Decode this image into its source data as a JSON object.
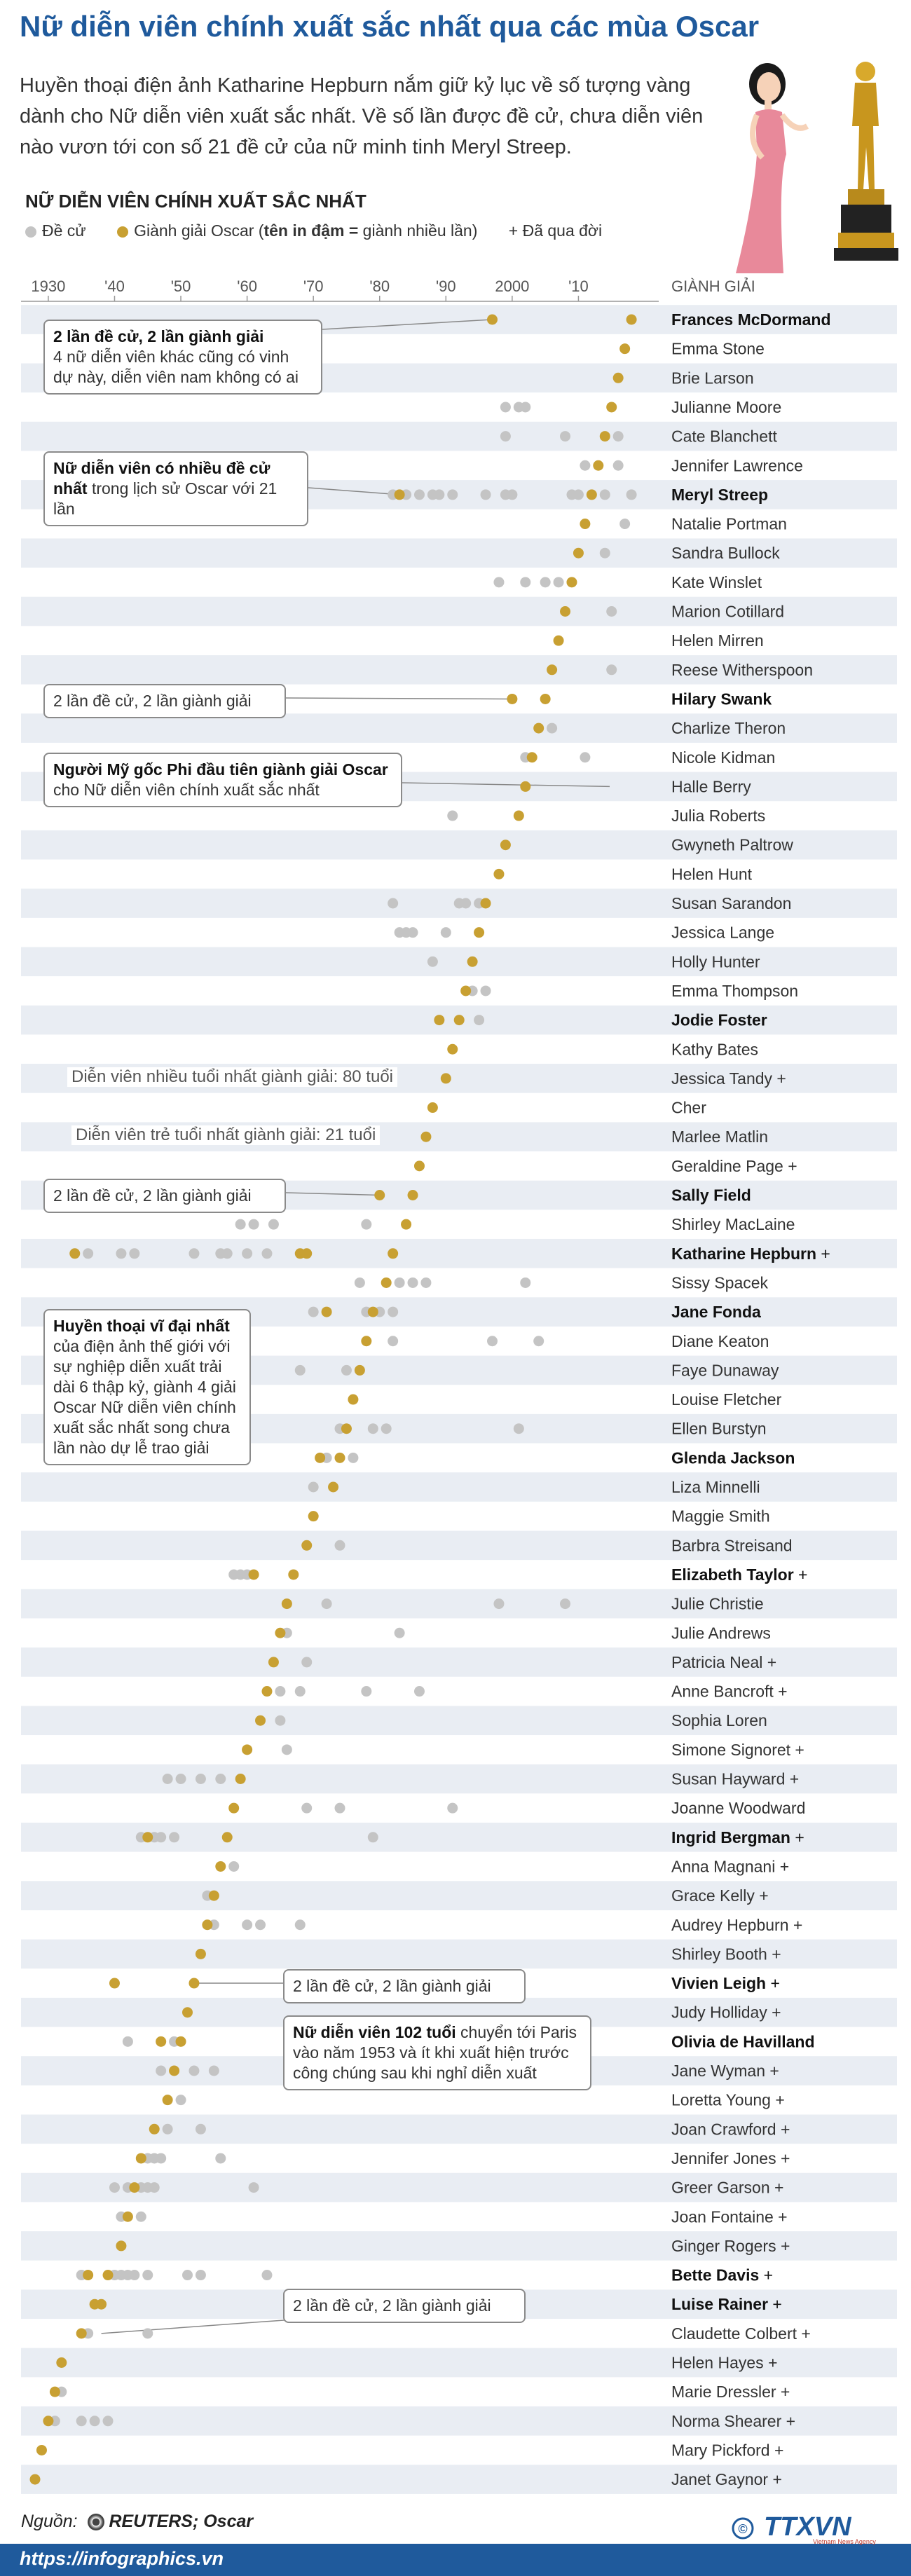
{
  "title": "Nữ diễn viên chính xuất sắc nhất qua các mùa Oscar",
  "intro": "Huyền thoại điện ảnh Katharine Hepburn nắm giữ kỷ lục về số tượng vàng dành cho Nữ diễn viên xuất sắc nhất. Về số lần được đề cử, chưa diễn viên nào vươn tới con số 21 đề cử của nữ minh tinh Meryl Streep.",
  "section_title": "NỮ DIỄN VIÊN CHÍNH XUẤT SẮC NHẤT",
  "legend": {
    "nominated": "Đề cử",
    "won_prefix": "Giành giải Oscar (",
    "won_bold": "tên in đậm =",
    "won_suffix": " giành nhiều lần)",
    "deceased": "+ Đã qua đời"
  },
  "colors": {
    "title": "#1f5a9c",
    "gold": "#c8a032",
    "gray": "#c4c4c4",
    "stripe": "#e9edf3"
  },
  "chart_data": {
    "type": "scatter",
    "x_axis_label": "",
    "y_axis_label": "GIÀNH GIẢI",
    "xlim": [
      1928,
      2020
    ],
    "x_ticks": [
      {
        "year": 1930,
        "label": "1930"
      },
      {
        "year": 1940,
        "label": "'40"
      },
      {
        "year": 1950,
        "label": "'50"
      },
      {
        "year": 1960,
        "label": "'60"
      },
      {
        "year": 1970,
        "label": "'70"
      },
      {
        "year": 1980,
        "label": "'80"
      },
      {
        "year": 1990,
        "label": "'90"
      },
      {
        "year": 2000,
        "label": "2000"
      },
      {
        "year": 2010,
        "label": "'10"
      }
    ],
    "actresses": [
      {
        "name": "Frances McDormand",
        "multi": true,
        "deceased": false,
        "wins": [
          1997,
          2018
        ],
        "noms": []
      },
      {
        "name": "Emma Stone",
        "multi": false,
        "deceased": false,
        "wins": [
          2017
        ],
        "noms": []
      },
      {
        "name": "Brie Larson",
        "multi": false,
        "deceased": false,
        "wins": [
          2016
        ],
        "noms": []
      },
      {
        "name": "Julianne Moore",
        "multi": false,
        "deceased": false,
        "wins": [
          2015
        ],
        "noms": [
          1999,
          2001,
          2002
        ]
      },
      {
        "name": "Cate Blanchett",
        "multi": false,
        "deceased": false,
        "wins": [
          2014
        ],
        "noms": [
          1999,
          2008,
          2016
        ]
      },
      {
        "name": "Jennifer Lawrence",
        "multi": false,
        "deceased": false,
        "wins": [
          2013
        ],
        "noms": [
          2011,
          2016
        ]
      },
      {
        "name": "Meryl Streep",
        "multi": true,
        "deceased": false,
        "wins": [
          1983,
          2012
        ],
        "noms": [
          1982,
          1984,
          1986,
          1988,
          1989,
          1991,
          1996,
          1999,
          2000,
          2009,
          2010,
          2014,
          2018
        ]
      },
      {
        "name": "Natalie Portman",
        "multi": false,
        "deceased": false,
        "wins": [
          2011
        ],
        "noms": [
          2017
        ]
      },
      {
        "name": "Sandra Bullock",
        "multi": false,
        "deceased": false,
        "wins": [
          2010
        ],
        "noms": [
          2014
        ]
      },
      {
        "name": "Kate Winslet",
        "multi": false,
        "deceased": false,
        "wins": [
          2009
        ],
        "noms": [
          1998,
          2002,
          2005,
          2007
        ]
      },
      {
        "name": "Marion Cotillard",
        "multi": false,
        "deceased": false,
        "wins": [
          2008
        ],
        "noms": [
          2015
        ]
      },
      {
        "name": "Helen Mirren",
        "multi": false,
        "deceased": false,
        "wins": [
          2007
        ],
        "noms": []
      },
      {
        "name": "Reese Witherspoon",
        "multi": false,
        "deceased": false,
        "wins": [
          2006
        ],
        "noms": [
          2015
        ]
      },
      {
        "name": "Hilary Swank",
        "multi": true,
        "deceased": false,
        "wins": [
          2000,
          2005
        ],
        "noms": []
      },
      {
        "name": "Charlize Theron",
        "multi": false,
        "deceased": false,
        "wins": [
          2004
        ],
        "noms": [
          2006
        ]
      },
      {
        "name": "Nicole Kidman",
        "multi": false,
        "deceased": false,
        "wins": [
          2003
        ],
        "noms": [
          2002,
          2011
        ]
      },
      {
        "name": "Halle Berry",
        "multi": false,
        "deceased": false,
        "wins": [
          2002
        ],
        "noms": []
      },
      {
        "name": "Julia Roberts",
        "multi": false,
        "deceased": false,
        "wins": [
          2001
        ],
        "noms": [
          1991
        ]
      },
      {
        "name": "Gwyneth Paltrow",
        "multi": false,
        "deceased": false,
        "wins": [
          1999
        ],
        "noms": []
      },
      {
        "name": "Helen Hunt",
        "multi": false,
        "deceased": false,
        "wins": [
          1998
        ],
        "noms": []
      },
      {
        "name": "Susan Sarandon",
        "multi": false,
        "deceased": false,
        "wins": [
          1996
        ],
        "noms": [
          1982,
          1992,
          1993,
          1995
        ]
      },
      {
        "name": "Jessica Lange",
        "multi": false,
        "deceased": false,
        "wins": [
          1995
        ],
        "noms": [
          1983,
          1984,
          1985,
          1990
        ]
      },
      {
        "name": "Holly Hunter",
        "multi": false,
        "deceased": false,
        "wins": [
          1994
        ],
        "noms": [
          1988
        ]
      },
      {
        "name": "Emma Thompson",
        "multi": false,
        "deceased": false,
        "wins": [
          1993
        ],
        "noms": [
          1994,
          1996
        ]
      },
      {
        "name": "Jodie Foster",
        "multi": true,
        "deceased": false,
        "wins": [
          1989,
          1992
        ],
        "noms": [
          1995
        ]
      },
      {
        "name": "Kathy Bates",
        "multi": false,
        "deceased": false,
        "wins": [
          1991
        ],
        "noms": []
      },
      {
        "name": "Jessica Tandy",
        "multi": false,
        "deceased": true,
        "wins": [
          1990
        ],
        "noms": []
      },
      {
        "name": "Cher",
        "multi": false,
        "deceased": false,
        "wins": [
          1988
        ],
        "noms": []
      },
      {
        "name": "Marlee Matlin",
        "multi": false,
        "deceased": false,
        "wins": [
          1987
        ],
        "noms": []
      },
      {
        "name": "Geraldine Page",
        "multi": false,
        "deceased": true,
        "wins": [
          1986
        ],
        "noms": []
      },
      {
        "name": "Sally Field",
        "multi": true,
        "deceased": false,
        "wins": [
          1980,
          1985
        ],
        "noms": []
      },
      {
        "name": "Shirley MacLaine",
        "multi": false,
        "deceased": false,
        "wins": [
          1984
        ],
        "noms": [
          1959,
          1961,
          1964,
          1978
        ]
      },
      {
        "name": "Katharine Hepburn",
        "multi": true,
        "deceased": true,
        "wins": [
          1934,
          1968,
          1969,
          1982
        ],
        "noms": [
          1936,
          1941,
          1943,
          1952,
          1956,
          1957,
          1960,
          1963
        ]
      },
      {
        "name": "Sissy Spacek",
        "multi": false,
        "deceased": false,
        "wins": [
          1981
        ],
        "noms": [
          1977,
          1983,
          1985,
          1987,
          2002
        ]
      },
      {
        "name": "Jane Fonda",
        "multi": true,
        "deceased": false,
        "wins": [
          1972,
          1979
        ],
        "noms": [
          1970,
          1978,
          1980,
          1982
        ]
      },
      {
        "name": "Diane Keaton",
        "multi": false,
        "deceased": false,
        "wins": [
          1978
        ],
        "noms": [
          1982,
          1997,
          2004
        ]
      },
      {
        "name": "Faye Dunaway",
        "multi": false,
        "deceased": false,
        "wins": [
          1977
        ],
        "noms": [
          1968,
          1975
        ]
      },
      {
        "name": "Louise Fletcher",
        "multi": false,
        "deceased": false,
        "wins": [
          1976
        ],
        "noms": []
      },
      {
        "name": "Ellen Burstyn",
        "multi": false,
        "deceased": false,
        "wins": [
          1975
        ],
        "noms": [
          1974,
          1979,
          1981,
          2001
        ]
      },
      {
        "name": "Glenda Jackson",
        "multi": true,
        "deceased": false,
        "wins": [
          1971,
          1974
        ],
        "noms": [
          1972,
          1976
        ]
      },
      {
        "name": "Liza Minnelli",
        "multi": false,
        "deceased": false,
        "wins": [
          1973
        ],
        "noms": [
          1970
        ]
      },
      {
        "name": "Maggie Smith",
        "multi": false,
        "deceased": false,
        "wins": [
          1970
        ],
        "noms": []
      },
      {
        "name": "Barbra Streisand",
        "multi": false,
        "deceased": false,
        "wins": [
          1969
        ],
        "noms": [
          1974
        ]
      },
      {
        "name": "Elizabeth Taylor",
        "multi": true,
        "deceased": true,
        "wins": [
          1961,
          1967
        ],
        "noms": [
          1958,
          1959,
          1960
        ]
      },
      {
        "name": "Julie Christie",
        "multi": false,
        "deceased": false,
        "wins": [
          1966
        ],
        "noms": [
          1972,
          1998,
          2008
        ]
      },
      {
        "name": "Julie Andrews",
        "multi": false,
        "deceased": false,
        "wins": [
          1965
        ],
        "noms": [
          1966,
          1983
        ]
      },
      {
        "name": "Patricia Neal",
        "multi": false,
        "deceased": true,
        "wins": [
          1964
        ],
        "noms": [
          1969
        ]
      },
      {
        "name": "Anne Bancroft",
        "multi": false,
        "deceased": true,
        "wins": [
          1963
        ],
        "noms": [
          1965,
          1968,
          1978,
          1986
        ]
      },
      {
        "name": "Sophia Loren",
        "multi": false,
        "deceased": false,
        "wins": [
          1962
        ],
        "noms": [
          1965
        ]
      },
      {
        "name": "Simone Signoret",
        "multi": false,
        "deceased": true,
        "wins": [
          1960
        ],
        "noms": [
          1966
        ]
      },
      {
        "name": "Susan Hayward",
        "multi": false,
        "deceased": true,
        "wins": [
          1959
        ],
        "noms": [
          1948,
          1950,
          1953,
          1956
        ]
      },
      {
        "name": "Joanne Woodward",
        "multi": false,
        "deceased": false,
        "wins": [
          1958
        ],
        "noms": [
          1969,
          1974,
          1991
        ]
      },
      {
        "name": "Ingrid Bergman",
        "multi": true,
        "deceased": true,
        "wins": [
          1945,
          1957
        ],
        "noms": [
          1944,
          1946,
          1947,
          1949,
          1979
        ]
      },
      {
        "name": "Anna Magnani",
        "multi": false,
        "deceased": true,
        "wins": [
          1956
        ],
        "noms": [
          1958
        ]
      },
      {
        "name": "Grace Kelly",
        "multi": false,
        "deceased": true,
        "wins": [
          1955
        ],
        "noms": [
          1954
        ]
      },
      {
        "name": "Audrey Hepburn",
        "multi": false,
        "deceased": true,
        "wins": [
          1954
        ],
        "noms": [
          1955,
          1960,
          1962,
          1968
        ]
      },
      {
        "name": "Shirley Booth",
        "multi": false,
        "deceased": true,
        "wins": [
          1953
        ],
        "noms": []
      },
      {
        "name": "Vivien Leigh",
        "multi": true,
        "deceased": true,
        "wins": [
          1940,
          1952
        ],
        "noms": []
      },
      {
        "name": "Judy Holliday",
        "multi": false,
        "deceased": true,
        "wins": [
          1951
        ],
        "noms": []
      },
      {
        "name": "Olivia de Havilland",
        "multi": true,
        "deceased": false,
        "wins": [
          1947,
          1950
        ],
        "noms": [
          1942,
          1949
        ]
      },
      {
        "name": "Jane Wyman",
        "multi": false,
        "deceased": true,
        "wins": [
          1949
        ],
        "noms": [
          1947,
          1952,
          1955
        ]
      },
      {
        "name": "Loretta Young",
        "multi": false,
        "deceased": true,
        "wins": [
          1948
        ],
        "noms": [
          1950
        ]
      },
      {
        "name": "Joan Crawford",
        "multi": false,
        "deceased": true,
        "wins": [
          1946
        ],
        "noms": [
          1948,
          1953
        ]
      },
      {
        "name": "Jennifer Jones",
        "multi": false,
        "deceased": true,
        "wins": [
          1944
        ],
        "noms": [
          1945,
          1946,
          1947,
          1956
        ]
      },
      {
        "name": "Greer Garson",
        "multi": false,
        "deceased": true,
        "wins": [
          1943
        ],
        "noms": [
          1940,
          1942,
          1944,
          1945,
          1946,
          1961
        ]
      },
      {
        "name": "Joan Fontaine",
        "multi": false,
        "deceased": true,
        "wins": [
          1942
        ],
        "noms": [
          1941,
          1944
        ]
      },
      {
        "name": "Ginger Rogers",
        "multi": false,
        "deceased": true,
        "wins": [
          1941
        ],
        "noms": []
      },
      {
        "name": "Bette Davis",
        "multi": true,
        "deceased": true,
        "wins": [
          1936,
          1939
        ],
        "noms": [
          1935,
          1940,
          1941,
          1942,
          1943,
          1945,
          1951,
          1953,
          1963
        ]
      },
      {
        "name": "Luise Rainer",
        "multi": true,
        "deceased": true,
        "wins": [
          1937,
          1938
        ],
        "noms": []
      },
      {
        "name": "Claudette Colbert",
        "multi": false,
        "deceased": true,
        "wins": [
          1935
        ],
        "noms": [
          1936,
          1945
        ]
      },
      {
        "name": "Helen Hayes",
        "multi": false,
        "deceased": true,
        "wins": [
          1932
        ],
        "noms": []
      },
      {
        "name": "Marie Dressler",
        "multi": false,
        "deceased": true,
        "wins": [
          1931
        ],
        "noms": [
          1932
        ]
      },
      {
        "name": "Norma Shearer",
        "multi": false,
        "deceased": true,
        "wins": [
          1930
        ],
        "noms": [
          1931,
          1935,
          1937,
          1939
        ]
      },
      {
        "name": "Mary Pickford",
        "multi": false,
        "deceased": true,
        "wins": [
          1929
        ],
        "noms": []
      },
      {
        "name": "Janet Gaynor",
        "multi": false,
        "deceased": true,
        "wins": [
          1928
        ],
        "noms": []
      }
    ]
  },
  "annotations": {
    "mcdormand": {
      "bold": "2 lần đề cử, 2 lần giành giải",
      "text": "4 nữ diễn viên khác cũng có vinh dự này, diễn viên nam không có ai"
    },
    "streep": {
      "bold": "Nữ diễn viên có nhiều đề cử nhất",
      "text": " trong lịch sử Oscar với 21 lần"
    },
    "swank": {
      "text": "2 lần đề cử, 2 lần giành giải"
    },
    "berry": {
      "bold": "Người Mỹ gốc Phi đầu tiên giành giải Oscar",
      "text": " cho Nữ diễn viên chính xuất sắc nhất"
    },
    "tandy": {
      "text": "Diễn viên nhiều tuổi nhất giành giải: 80 tuổi"
    },
    "matlin": {
      "text": "Diễn viên trẻ tuổi nhất giành giải: 21 tuổi"
    },
    "field": {
      "text": "2 lần đề cử, 2 lần giành giải"
    },
    "hepburn": {
      "bold": "Huyền thoại vĩ đại nhất",
      "text": " của điện ảnh thế giới với sự nghiệp diễn xuất trải dài 6 thập kỷ, giành 4 giải Oscar Nữ diễn viên chính xuất sắc nhất song chưa lần nào dự lễ trao giải"
    },
    "leigh": {
      "text": "2 lần đề cử, 2 lần giành giải"
    },
    "dehavilland": {
      "bold": "Nữ diễn viên 102 tuổi",
      "text": " chuyển tới Paris vào năm 1953 và ít khi xuất hiện trước công chúng sau khi nghỉ diễn xuất"
    },
    "rainer": {
      "text": "2 lần đề cử, 2 lần giành giải"
    }
  },
  "footer": {
    "source_label": "Nguồn:",
    "source_text": "REUTERS; Oscar",
    "url": "https://infographics.vn",
    "copyright": "©",
    "logo": "TTXVN",
    "logo_sub": "Vietnam News Agency"
  }
}
